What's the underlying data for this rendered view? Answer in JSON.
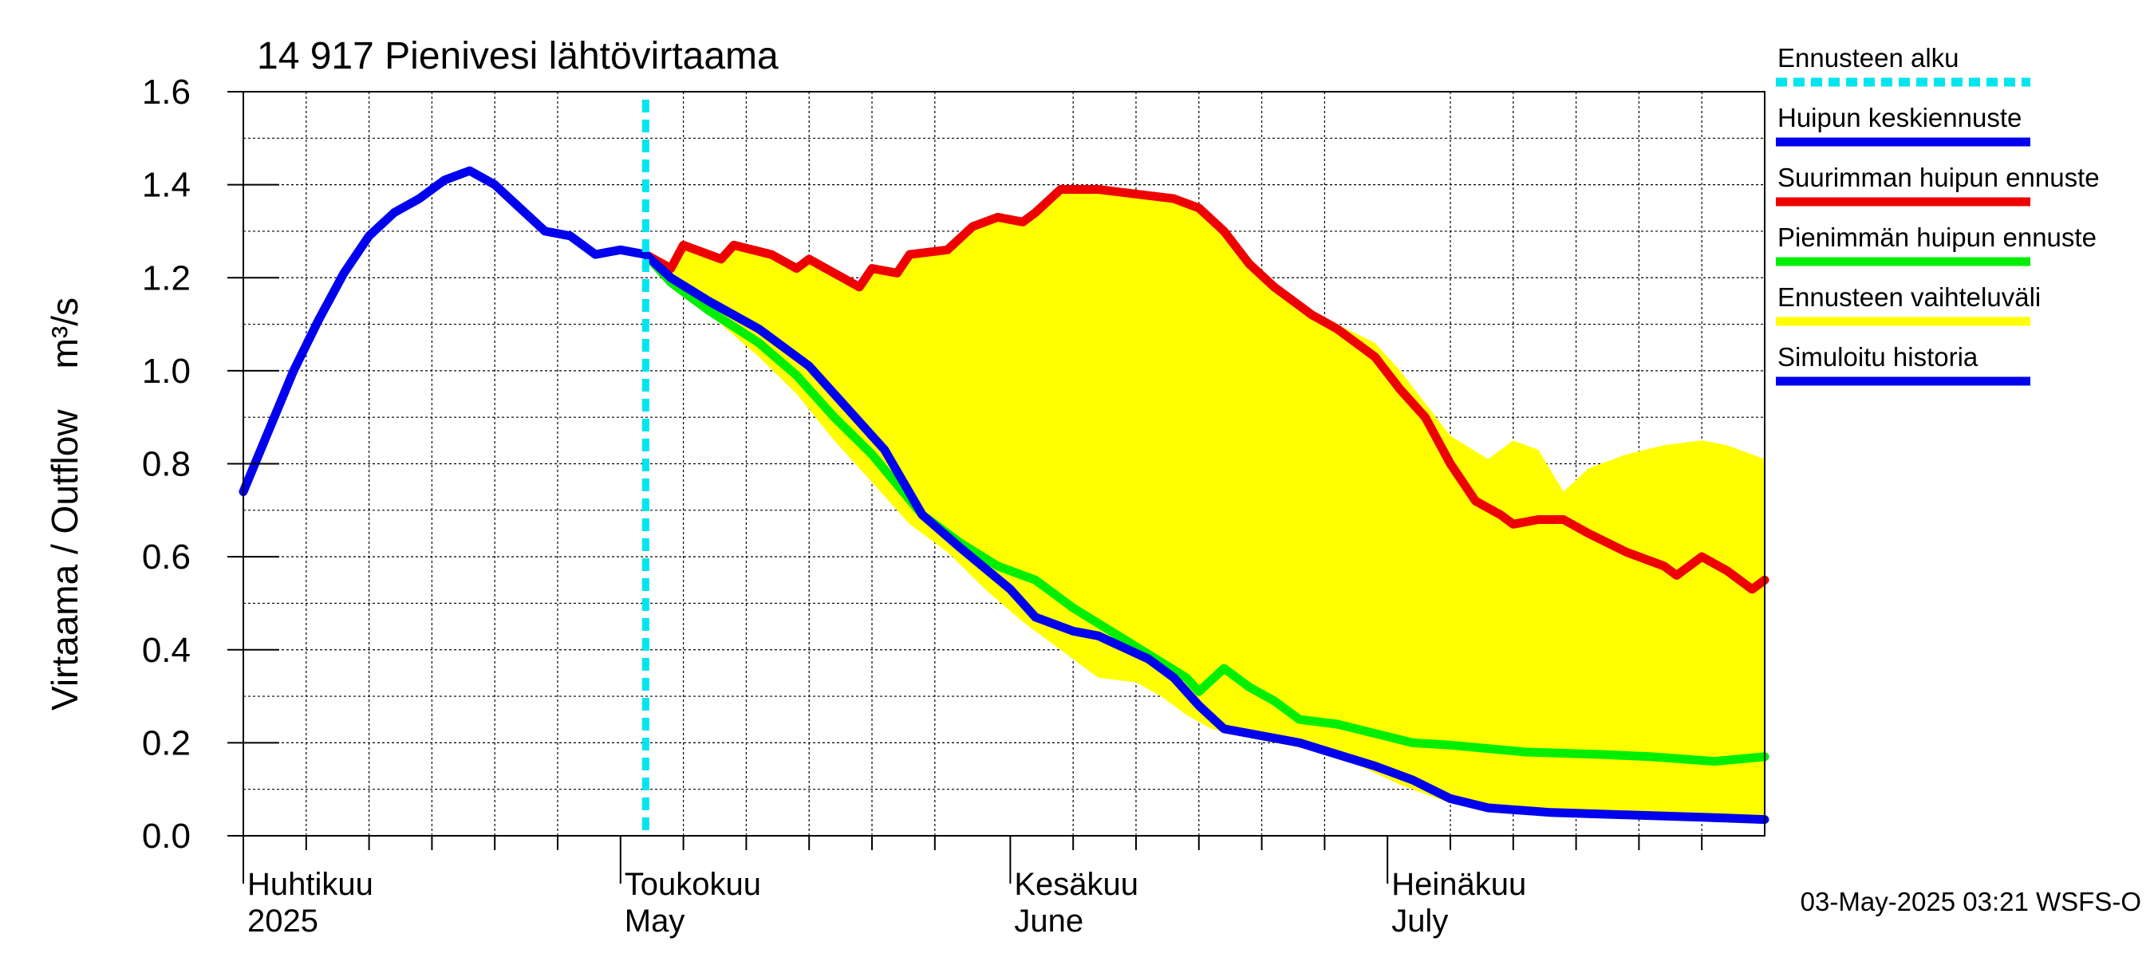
{
  "chart_data": {
    "type": "line",
    "title": "14 917 Pienivesi lähtövirtaama",
    "ylabel": "Virtaama / Outflow    m³/s",
    "ylim": [
      0,
      1.6
    ],
    "yticks": [
      "0.0",
      "0.2",
      "0.4",
      "0.6",
      "0.8",
      "1.0",
      "1.2",
      "1.4",
      "1.6"
    ],
    "xlim": [
      "2025-04-01",
      "2025-07-31"
    ],
    "month_labels": [
      {
        "date": "2025-04-01",
        "fi": "Huhtikuu",
        "en": "2025"
      },
      {
        "date": "2025-05-01",
        "fi": "Toukokuu",
        "en": "May"
      },
      {
        "date": "2025-06-01",
        "fi": "Kesäkuu",
        "en": "June"
      },
      {
        "date": "2025-07-01",
        "fi": "Heinäkuu",
        "en": "July"
      }
    ],
    "forecast_start": "2025-05-03",
    "timestamp": "03-May-2025 03:21 WSFS-O",
    "legend_position": "right",
    "legend": [
      {
        "label": "Ennusteen alku",
        "color": "#00e5ee",
        "style": "dotted"
      },
      {
        "label": "Huipun keskiennuste",
        "color": "#0000ee",
        "style": "solid"
      },
      {
        "label": "Suurimman huipun ennuste",
        "color": "#ee0000",
        "style": "solid"
      },
      {
        "label": "Pienimmän huipun ennuste",
        "color": "#00ee00",
        "style": "solid"
      },
      {
        "label": "Ennusteen vaihteluväli",
        "color": "#ffff00",
        "style": "solid"
      },
      {
        "label": "Simuloitu historia",
        "color": "#0000ee",
        "style": "solid"
      }
    ],
    "series": [
      {
        "name": "Simuloitu historia",
        "color": "#0000ee",
        "points": [
          [
            "2025-04-01",
            0.74
          ],
          [
            "2025-04-03",
            0.87
          ],
          [
            "2025-04-05",
            1.0
          ],
          [
            "2025-04-07",
            1.11
          ],
          [
            "2025-04-09",
            1.21
          ],
          [
            "2025-04-11",
            1.29
          ],
          [
            "2025-04-13",
            1.34
          ],
          [
            "2025-04-15",
            1.37
          ],
          [
            "2025-04-17",
            1.41
          ],
          [
            "2025-04-19",
            1.43
          ],
          [
            "2025-04-21",
            1.4
          ],
          [
            "2025-04-23",
            1.35
          ],
          [
            "2025-04-25",
            1.3
          ],
          [
            "2025-04-27",
            1.29
          ],
          [
            "2025-04-29",
            1.25
          ],
          [
            "2025-05-01",
            1.26
          ],
          [
            "2025-05-03",
            1.25
          ]
        ]
      },
      {
        "name": "Huipun keskiennuste",
        "color": "#0000ee",
        "points": [
          [
            "2025-05-03",
            1.25
          ],
          [
            "2025-05-05",
            1.2
          ],
          [
            "2025-05-08",
            1.15
          ],
          [
            "2025-05-12",
            1.09
          ],
          [
            "2025-05-16",
            1.01
          ],
          [
            "2025-05-19",
            0.92
          ],
          [
            "2025-05-22",
            0.83
          ],
          [
            "2025-05-25",
            0.69
          ],
          [
            "2025-05-28",
            0.62
          ],
          [
            "2025-06-01",
            0.53
          ],
          [
            "2025-06-03",
            0.47
          ],
          [
            "2025-06-06",
            0.44
          ],
          [
            "2025-06-08",
            0.43
          ],
          [
            "2025-06-12",
            0.38
          ],
          [
            "2025-06-14",
            0.34
          ],
          [
            "2025-06-16",
            0.28
          ],
          [
            "2025-06-18",
            0.23
          ],
          [
            "2025-06-24",
            0.2
          ],
          [
            "2025-06-30",
            0.15
          ],
          [
            "2025-07-03",
            0.12
          ],
          [
            "2025-07-06",
            0.08
          ],
          [
            "2025-07-09",
            0.06
          ],
          [
            "2025-07-14",
            0.05
          ],
          [
            "2025-07-20",
            0.045
          ],
          [
            "2025-07-26",
            0.04
          ],
          [
            "2025-07-31",
            0.035
          ]
        ]
      },
      {
        "name": "Suurimman huipun ennuste",
        "color": "#ee0000",
        "points": [
          [
            "2025-05-03",
            1.25
          ],
          [
            "2025-05-05",
            1.22
          ],
          [
            "2025-05-06",
            1.27
          ],
          [
            "2025-05-09",
            1.24
          ],
          [
            "2025-05-10",
            1.27
          ],
          [
            "2025-05-13",
            1.25
          ],
          [
            "2025-05-15",
            1.22
          ],
          [
            "2025-05-16",
            1.24
          ],
          [
            "2025-05-18",
            1.21
          ],
          [
            "2025-05-20",
            1.18
          ],
          [
            "2025-05-21",
            1.22
          ],
          [
            "2025-05-23",
            1.21
          ],
          [
            "2025-05-24",
            1.25
          ],
          [
            "2025-05-27",
            1.26
          ],
          [
            "2025-05-29",
            1.31
          ],
          [
            "2025-05-31",
            1.33
          ],
          [
            "2025-06-02",
            1.32
          ],
          [
            "2025-06-03",
            1.34
          ],
          [
            "2025-06-05",
            1.39
          ],
          [
            "2025-06-08",
            1.39
          ],
          [
            "2025-06-11",
            1.38
          ],
          [
            "2025-06-14",
            1.37
          ],
          [
            "2025-06-16",
            1.35
          ],
          [
            "2025-06-18",
            1.3
          ],
          [
            "2025-06-20",
            1.23
          ],
          [
            "2025-06-22",
            1.18
          ],
          [
            "2025-06-25",
            1.12
          ],
          [
            "2025-06-27",
            1.09
          ],
          [
            "2025-06-30",
            1.03
          ],
          [
            "2025-07-02",
            0.96
          ],
          [
            "2025-07-04",
            0.9
          ],
          [
            "2025-07-06",
            0.8
          ],
          [
            "2025-07-08",
            0.72
          ],
          [
            "2025-07-10",
            0.69
          ],
          [
            "2025-07-11",
            0.67
          ],
          [
            "2025-07-13",
            0.68
          ],
          [
            "2025-07-15",
            0.68
          ],
          [
            "2025-07-17",
            0.65
          ],
          [
            "2025-07-20",
            0.61
          ],
          [
            "2025-07-23",
            0.58
          ],
          [
            "2025-07-24",
            0.56
          ],
          [
            "2025-07-26",
            0.6
          ],
          [
            "2025-07-28",
            0.57
          ],
          [
            "2025-07-30",
            0.53
          ],
          [
            "2025-07-31",
            0.55
          ]
        ]
      },
      {
        "name": "Pienimmän huipun ennuste",
        "color": "#00ee00",
        "points": [
          [
            "2025-05-03",
            1.25
          ],
          [
            "2025-05-05",
            1.19
          ],
          [
            "2025-05-08",
            1.13
          ],
          [
            "2025-05-12",
            1.06
          ],
          [
            "2025-05-15",
            0.99
          ],
          [
            "2025-05-18",
            0.9
          ],
          [
            "2025-05-21",
            0.82
          ],
          [
            "2025-05-25",
            0.69
          ],
          [
            "2025-05-28",
            0.63
          ],
          [
            "2025-05-31",
            0.58
          ],
          [
            "2025-06-03",
            0.55
          ],
          [
            "2025-06-06",
            0.49
          ],
          [
            "2025-06-09",
            0.44
          ],
          [
            "2025-06-12",
            0.39
          ],
          [
            "2025-06-15",
            0.34
          ],
          [
            "2025-06-16",
            0.31
          ],
          [
            "2025-06-18",
            0.36
          ],
          [
            "2025-06-20",
            0.32
          ],
          [
            "2025-06-22",
            0.29
          ],
          [
            "2025-06-24",
            0.25
          ],
          [
            "2025-06-27",
            0.24
          ],
          [
            "2025-06-30",
            0.22
          ],
          [
            "2025-07-03",
            0.2
          ],
          [
            "2025-07-06",
            0.195
          ],
          [
            "2025-07-12",
            0.18
          ],
          [
            "2025-07-18",
            0.175
          ],
          [
            "2025-07-22",
            0.17
          ],
          [
            "2025-07-27",
            0.16
          ],
          [
            "2025-07-31",
            0.17
          ]
        ]
      }
    ],
    "range_band": {
      "name": "Ennusteen vaihteluväli",
      "color": "#ffff00",
      "upper": [
        [
          "2025-05-03",
          1.25
        ],
        [
          "2025-05-05",
          1.22
        ],
        [
          "2025-05-06",
          1.27
        ],
        [
          "2025-05-09",
          1.24
        ],
        [
          "2025-05-10",
          1.27
        ],
        [
          "2025-05-13",
          1.25
        ],
        [
          "2025-05-15",
          1.22
        ],
        [
          "2025-05-16",
          1.24
        ],
        [
          "2025-05-18",
          1.21
        ],
        [
          "2025-05-20",
          1.18
        ],
        [
          "2025-05-21",
          1.22
        ],
        [
          "2025-05-23",
          1.21
        ],
        [
          "2025-05-24",
          1.25
        ],
        [
          "2025-05-27",
          1.26
        ],
        [
          "2025-05-29",
          1.31
        ],
        [
          "2025-05-31",
          1.33
        ],
        [
          "2025-06-02",
          1.32
        ],
        [
          "2025-06-03",
          1.34
        ],
        [
          "2025-06-05",
          1.39
        ],
        [
          "2025-06-08",
          1.39
        ],
        [
          "2025-06-11",
          1.38
        ],
        [
          "2025-06-14",
          1.37
        ],
        [
          "2025-06-16",
          1.35
        ],
        [
          "2025-06-18",
          1.3
        ],
        [
          "2025-06-20",
          1.23
        ],
        [
          "2025-06-22",
          1.18
        ],
        [
          "2025-06-25",
          1.13
        ],
        [
          "2025-06-27",
          1.1
        ],
        [
          "2025-06-30",
          1.06
        ],
        [
          "2025-07-02",
          1.0
        ],
        [
          "2025-07-04",
          0.93
        ],
        [
          "2025-07-06",
          0.86
        ],
        [
          "2025-07-09",
          0.81
        ],
        [
          "2025-07-11",
          0.85
        ],
        [
          "2025-07-13",
          0.83
        ],
        [
          "2025-07-15",
          0.74
        ],
        [
          "2025-07-17",
          0.79
        ],
        [
          "2025-07-20",
          0.82
        ],
        [
          "2025-07-23",
          0.84
        ],
        [
          "2025-07-26",
          0.85
        ],
        [
          "2025-07-28",
          0.84
        ],
        [
          "2025-07-31",
          0.81
        ]
      ],
      "lower": [
        [
          "2025-05-03",
          1.25
        ],
        [
          "2025-05-06",
          1.17
        ],
        [
          "2025-05-09",
          1.1
        ],
        [
          "2025-05-12",
          1.03
        ],
        [
          "2025-05-15",
          0.95
        ],
        [
          "2025-05-18",
          0.85
        ],
        [
          "2025-05-21",
          0.76
        ],
        [
          "2025-05-24",
          0.67
        ],
        [
          "2025-05-27",
          0.61
        ],
        [
          "2025-05-30",
          0.53
        ],
        [
          "2025-06-02",
          0.46
        ],
        [
          "2025-06-05",
          0.4
        ],
        [
          "2025-06-08",
          0.34
        ],
        [
          "2025-06-11",
          0.33
        ],
        [
          "2025-06-13",
          0.3
        ],
        [
          "2025-06-15",
          0.26
        ],
        [
          "2025-06-17",
          0.23
        ],
        [
          "2025-06-20",
          0.21
        ],
        [
          "2025-06-24",
          0.19
        ],
        [
          "2025-06-28",
          0.16
        ],
        [
          "2025-07-02",
          0.11
        ],
        [
          "2025-07-06",
          0.07
        ],
        [
          "2025-07-10",
          0.055
        ],
        [
          "2025-07-16",
          0.045
        ],
        [
          "2025-07-22",
          0.04
        ],
        [
          "2025-07-28",
          0.035
        ],
        [
          "2025-07-31",
          0.03
        ]
      ]
    }
  }
}
